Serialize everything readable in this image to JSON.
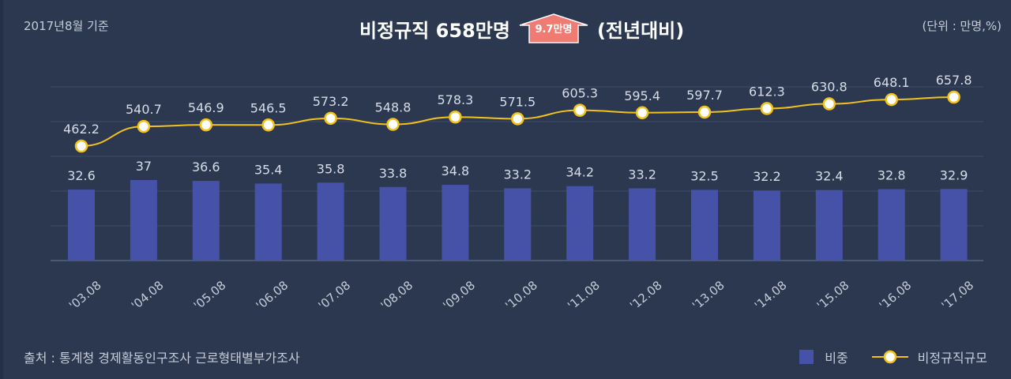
{
  "header": {
    "date_note": "2017년8월 기준",
    "title_prefix": "비정규직  658만명",
    "increase_badge": "9.7만명",
    "title_suffix": "(전년대비)",
    "unit_note": "(단위 : 만명,%)"
  },
  "footer": {
    "source": "출처 : 통계청 경제활동인구조사 근로형태별부가조사"
  },
  "legend": {
    "bar_label": "비중",
    "line_label": "비정규직규모"
  },
  "colors": {
    "background": "#2b3850",
    "bar": "#4651a8",
    "line": "#f2c21a",
    "marker_fill": "#ffffff",
    "badge": "#f07b73"
  },
  "chart_data": {
    "type": "bar",
    "categories": [
      "'03.08",
      "'04.08",
      "'05.08",
      "'06.08",
      "'07.08",
      "'08.08",
      "'09.08",
      "'10.08",
      "'11.08",
      "'12.08",
      "'13.08",
      "'14.08",
      "'15.08",
      "'16.08",
      "'17.08"
    ],
    "series": [
      {
        "name": "비중",
        "type": "bar",
        "values": [
          32.6,
          37,
          36.6,
          35.4,
          35.8,
          33.8,
          34.8,
          33.2,
          34.2,
          33.2,
          32.5,
          32.2,
          32.4,
          32.8,
          32.9
        ]
      },
      {
        "name": "비정규직규모",
        "type": "line",
        "values": [
          462.2,
          540.7,
          546.9,
          546.5,
          573.2,
          548.8,
          578.3,
          571.5,
          605.3,
          595.4,
          597.7,
          612.3,
          630.8,
          648.1,
          657.8
        ]
      }
    ],
    "grid": true,
    "legend_position": "bottom-right"
  }
}
